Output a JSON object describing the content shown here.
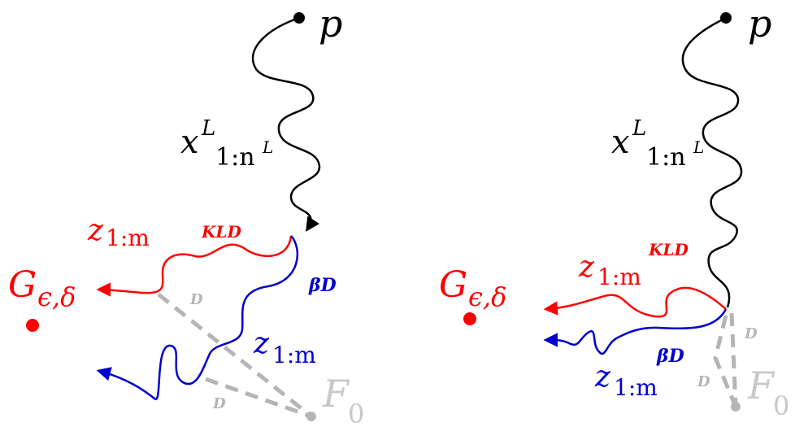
{
  "colors": {
    "black": "#000000",
    "red": "#ff0000",
    "blue": "#0000cc",
    "gray": "#b5b5b5"
  },
  "labels": {
    "p": "p",
    "x_main": "x",
    "x_sup": "L",
    "x_sub_main": "1:n",
    "x_sub_sup": "L",
    "z_main": "z",
    "z_sub": "1:m",
    "kld": "KLD",
    "beta_d": "βD",
    "d": "D",
    "g_main": "G",
    "g_sub": "ϵ,δ",
    "f_main": "F",
    "f_sub": "0"
  }
}
